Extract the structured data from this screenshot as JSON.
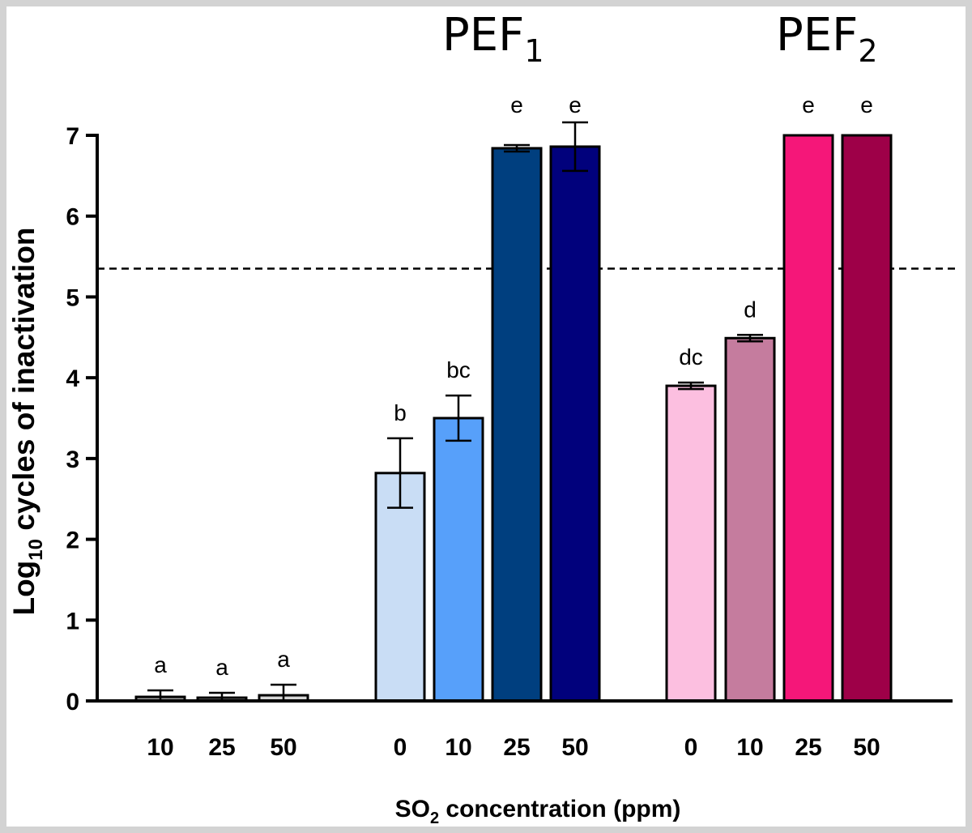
{
  "chart_data": {
    "type": "bar",
    "ylim": [
      0,
      7
    ],
    "yticks": [
      "0",
      "1",
      "2",
      "3",
      "4",
      "5",
      "6",
      "7"
    ],
    "ylabel": {
      "main": "Log",
      "sub": "10",
      "rest": " cycles of inactivation"
    },
    "xlabel": {
      "main": "SO",
      "sub": "2",
      "rest": " concentration (ppm)"
    },
    "reference_line": 5.35,
    "groups": [
      {
        "title": "",
        "title_sub": ""
      },
      {
        "title": "PEF",
        "title_sub": "1"
      },
      {
        "title": "PEF",
        "title_sub": "2"
      }
    ],
    "bars": [
      {
        "group": 0,
        "category": "10",
        "value": 0.05,
        "error": 0.08,
        "sig": "a",
        "color": "#9e9e9e"
      },
      {
        "group": 0,
        "category": "25",
        "value": 0.04,
        "error": 0.06,
        "sig": "a",
        "color": "#9e9e9e"
      },
      {
        "group": 0,
        "category": "50",
        "value": 0.07,
        "error": 0.13,
        "sig": "a",
        "color": "#d6d6d6"
      },
      {
        "group": 1,
        "category": "0",
        "value": 2.82,
        "error": 0.43,
        "sig": "b",
        "color": "#c9ddf5"
      },
      {
        "group": 1,
        "category": "10",
        "value": 3.5,
        "error": 0.28,
        "sig": "bc",
        "color": "#57a0fa"
      },
      {
        "group": 1,
        "category": "25",
        "value": 6.84,
        "error": 0.04,
        "sig": "e",
        "color": "#003f7f"
      },
      {
        "group": 1,
        "category": "50",
        "value": 6.86,
        "error": 0.3,
        "sig": "e",
        "color": "#01017c"
      },
      {
        "group": 2,
        "category": "0",
        "value": 3.9,
        "error": 0.04,
        "sig": "dc",
        "color": "#fcbfe0"
      },
      {
        "group": 2,
        "category": "10",
        "value": 4.49,
        "error": 0.04,
        "sig": "d",
        "color": "#c57c9e"
      },
      {
        "group": 2,
        "category": "25",
        "value": 7.0,
        "error": 0,
        "sig": "e",
        "color": "#f51779"
      },
      {
        "group": 2,
        "category": "50",
        "value": 7.0,
        "error": 0,
        "sig": "e",
        "color": "#9e0048"
      }
    ]
  }
}
